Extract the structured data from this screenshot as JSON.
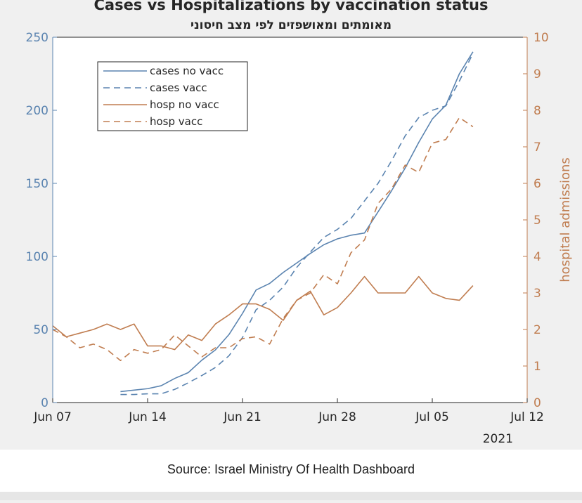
{
  "chart_data": {
    "type": "line",
    "title": "Cases vs Hospitalizations by vaccination status",
    "subtitle": "מאומתים ומאושפזים לפי מצב חיסוני",
    "y_left": {
      "label": "",
      "lim": [
        0,
        250
      ],
      "ticks": [
        0,
        50,
        100,
        150,
        200,
        250
      ],
      "color": "#5b84b0"
    },
    "y_right": {
      "label": "hospital admissions",
      "lim": [
        0,
        10
      ],
      "ticks": [
        0,
        1,
        2,
        3,
        4,
        5,
        6,
        7,
        8,
        9,
        10
      ],
      "color": "#c07d50"
    },
    "x": {
      "start": "2021-06-07",
      "end": "2021-07-12",
      "ticks": [
        {
          "date": "2021-06-07",
          "label": "Jun 07"
        },
        {
          "date": "2021-06-14",
          "label": "Jun 14"
        },
        {
          "date": "2021-06-21",
          "label": "Jun 21"
        },
        {
          "date": "2021-06-28",
          "label": "Jun 28"
        },
        {
          "date": "2021-07-05",
          "label": "Jul 05"
        },
        {
          "date": "2021-07-12",
          "label": "Jul 12"
        }
      ],
      "year_label": "2021"
    },
    "legend": {
      "position": "top-left"
    },
    "grid": false,
    "series": [
      {
        "name": "cases no vacc",
        "axis": "left",
        "color": "#5b84b0",
        "dash": "solid",
        "points": [
          [
            "2021-06-12",
            7.5
          ],
          [
            "2021-06-13",
            8.5
          ],
          [
            "2021-06-14",
            9.5
          ],
          [
            "2021-06-15",
            11.5
          ],
          [
            "2021-06-16",
            16.5
          ],
          [
            "2021-06-17",
            20.5
          ],
          [
            "2021-06-18",
            29
          ],
          [
            "2021-06-19",
            36
          ],
          [
            "2021-06-20",
            46.5
          ],
          [
            "2021-06-21",
            61
          ],
          [
            "2021-06-22",
            77
          ],
          [
            "2021-06-23",
            81.5
          ],
          [
            "2021-06-24",
            89
          ],
          [
            "2021-06-25",
            95.5
          ],
          [
            "2021-06-26",
            102
          ],
          [
            "2021-06-27",
            108
          ],
          [
            "2021-06-28",
            112
          ],
          [
            "2021-06-29",
            114.5
          ],
          [
            "2021-06-30",
            116
          ],
          [
            "2021-07-01",
            130.5
          ],
          [
            "2021-07-02",
            145
          ],
          [
            "2021-07-03",
            160.5
          ],
          [
            "2021-07-04",
            178
          ],
          [
            "2021-07-05",
            194
          ],
          [
            "2021-07-06",
            203.5
          ],
          [
            "2021-07-07",
            225
          ],
          [
            "2021-07-08",
            240
          ]
        ]
      },
      {
        "name": "cases vacc",
        "axis": "left",
        "color": "#5b84b0",
        "dash": "dashed",
        "points": [
          [
            "2021-06-12",
            5.5
          ],
          [
            "2021-06-13",
            5.5
          ],
          [
            "2021-06-14",
            6
          ],
          [
            "2021-06-15",
            6
          ],
          [
            "2021-06-16",
            9
          ],
          [
            "2021-06-17",
            13.5
          ],
          [
            "2021-06-18",
            18.5
          ],
          [
            "2021-06-19",
            24
          ],
          [
            "2021-06-20",
            32
          ],
          [
            "2021-06-21",
            44.5
          ],
          [
            "2021-06-22",
            63.5
          ],
          [
            "2021-06-23",
            70
          ],
          [
            "2021-06-24",
            79
          ],
          [
            "2021-06-25",
            92.5
          ],
          [
            "2021-06-26",
            103
          ],
          [
            "2021-06-27",
            113
          ],
          [
            "2021-06-28",
            118.5
          ],
          [
            "2021-06-29",
            126
          ],
          [
            "2021-06-30",
            138
          ],
          [
            "2021-07-01",
            150
          ],
          [
            "2021-07-02",
            165.5
          ],
          [
            "2021-07-03",
            182.5
          ],
          [
            "2021-07-04",
            195
          ],
          [
            "2021-07-05",
            200
          ],
          [
            "2021-07-06",
            203
          ],
          [
            "2021-07-07",
            220
          ],
          [
            "2021-07-08",
            239
          ]
        ]
      },
      {
        "name": "hosp no vacc",
        "axis": "right",
        "color": "#c07d50",
        "dash": "solid",
        "points": [
          [
            "2021-06-07",
            2.1
          ],
          [
            "2021-06-08",
            1.8
          ],
          [
            "2021-06-09",
            1.9
          ],
          [
            "2021-06-10",
            2.0
          ],
          [
            "2021-06-11",
            2.15
          ],
          [
            "2021-06-12",
            2.0
          ],
          [
            "2021-06-13",
            2.15
          ],
          [
            "2021-06-14",
            1.55
          ],
          [
            "2021-06-15",
            1.55
          ],
          [
            "2021-06-16",
            1.45
          ],
          [
            "2021-06-17",
            1.85
          ],
          [
            "2021-06-18",
            1.7
          ],
          [
            "2021-06-19",
            2.15
          ],
          [
            "2021-06-20",
            2.4
          ],
          [
            "2021-06-21",
            2.7
          ],
          [
            "2021-06-22",
            2.7
          ],
          [
            "2021-06-23",
            2.55
          ],
          [
            "2021-06-24",
            2.25
          ],
          [
            "2021-06-25",
            2.8
          ],
          [
            "2021-06-26",
            3.05
          ],
          [
            "2021-06-27",
            2.4
          ],
          [
            "2021-06-28",
            2.6
          ],
          [
            "2021-06-29",
            3.0
          ],
          [
            "2021-06-30",
            3.45
          ],
          [
            "2021-07-01",
            3.0
          ],
          [
            "2021-07-02",
            3.0
          ],
          [
            "2021-07-03",
            3.0
          ],
          [
            "2021-07-04",
            3.45
          ],
          [
            "2021-07-05",
            3.0
          ],
          [
            "2021-07-06",
            2.85
          ],
          [
            "2021-07-07",
            2.8
          ],
          [
            "2021-07-08",
            3.2
          ]
        ]
      },
      {
        "name": "hosp vacc",
        "axis": "right",
        "color": "#c07d50",
        "dash": "dashed",
        "points": [
          [
            "2021-06-07",
            2.0
          ],
          [
            "2021-06-08",
            1.8
          ],
          [
            "2021-06-09",
            1.5
          ],
          [
            "2021-06-10",
            1.6
          ],
          [
            "2021-06-11",
            1.45
          ],
          [
            "2021-06-12",
            1.15
          ],
          [
            "2021-06-13",
            1.45
          ],
          [
            "2021-06-14",
            1.35
          ],
          [
            "2021-06-15",
            1.45
          ],
          [
            "2021-06-16",
            1.85
          ],
          [
            "2021-06-17",
            1.55
          ],
          [
            "2021-06-18",
            1.25
          ],
          [
            "2021-06-19",
            1.5
          ],
          [
            "2021-06-20",
            1.5
          ],
          [
            "2021-06-21",
            1.75
          ],
          [
            "2021-06-22",
            1.8
          ],
          [
            "2021-06-23",
            1.6
          ],
          [
            "2021-06-24",
            2.3
          ],
          [
            "2021-06-25",
            2.8
          ],
          [
            "2021-06-26",
            3.0
          ],
          [
            "2021-06-27",
            3.5
          ],
          [
            "2021-06-28",
            3.25
          ],
          [
            "2021-06-29",
            4.1
          ],
          [
            "2021-06-30",
            4.45
          ],
          [
            "2021-07-01",
            5.45
          ],
          [
            "2021-07-02",
            5.85
          ],
          [
            "2021-07-03",
            6.5
          ],
          [
            "2021-07-04",
            6.3
          ],
          [
            "2021-07-05",
            7.1
          ],
          [
            "2021-07-06",
            7.2
          ],
          [
            "2021-07-07",
            7.8
          ],
          [
            "2021-07-08",
            7.55
          ]
        ]
      }
    ]
  },
  "source": "Source: Israel Ministry Of Health Dashboard"
}
